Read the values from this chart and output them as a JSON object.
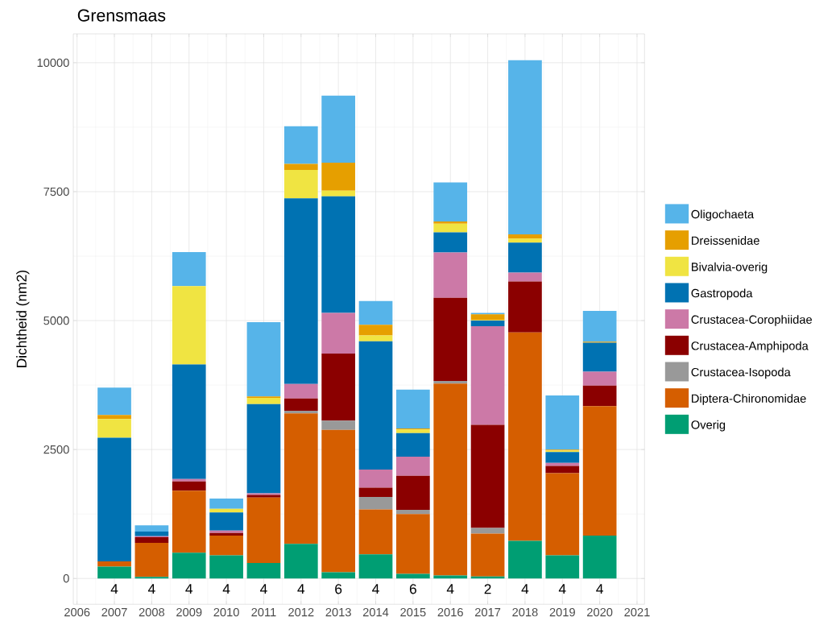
{
  "chart_data": {
    "type": "bar",
    "stacked": true,
    "title": "Grensmaas",
    "ylabel": "Dichtheid (nm2)",
    "x": [
      2007,
      2008,
      2009,
      2010,
      2011,
      2012,
      2013,
      2014,
      2015,
      2016,
      2017,
      2018,
      2019,
      2020
    ],
    "xlim": [
      2005.9,
      2021.2
    ],
    "ylim": [
      -500,
      10560
    ],
    "xticks": [
      2006,
      2007,
      2008,
      2009,
      2010,
      2011,
      2012,
      2013,
      2014,
      2015,
      2016,
      2017,
      2018,
      2019,
      2020,
      2021
    ],
    "yticks": [
      0,
      2500,
      5000,
      7500,
      10000
    ],
    "grid": true,
    "legend": "right",
    "series": [
      {
        "name": "Overig",
        "color": "#009e73",
        "values": [
          230,
          30,
          500,
          450,
          300,
          670,
          120,
          470,
          90,
          60,
          40,
          730,
          450,
          830
        ]
      },
      {
        "name": "Diptera-Chironomidae",
        "color": "#d55e00",
        "values": [
          100,
          660,
          1200,
          380,
          1270,
          2530,
          2760,
          870,
          1160,
          3720,
          830,
          4040,
          1590,
          2510
        ]
      },
      {
        "name": "Crustacea-Isopoda",
        "color": "#999999",
        "values": [
          0,
          0,
          0,
          0,
          0,
          50,
          180,
          240,
          80,
          50,
          110,
          0,
          0,
          0
        ]
      },
      {
        "name": "Crustacea-Amphipoda",
        "color": "#8b0000",
        "values": [
          0,
          110,
          180,
          50,
          50,
          240,
          1300,
          180,
          660,
          1610,
          2000,
          990,
          140,
          400
        ]
      },
      {
        "name": "Crustacea-Corophiidae",
        "color": "#cc79a7",
        "values": [
          0,
          20,
          50,
          50,
          30,
          280,
          790,
          350,
          370,
          880,
          1910,
          170,
          60,
          270
        ]
      },
      {
        "name": "Gastropoda",
        "color": "#0072b2",
        "values": [
          2400,
          90,
          2220,
          350,
          1730,
          3600,
          2260,
          2490,
          460,
          390,
          110,
          580,
          210,
          560
        ]
      },
      {
        "name": "Bivalvia-overig",
        "color": "#f0e442",
        "values": [
          360,
          0,
          1520,
          70,
          120,
          550,
          110,
          110,
          70,
          170,
          10,
          80,
          30,
          0
        ]
      },
      {
        "name": "Dreissenidae",
        "color": "#e69f00",
        "values": [
          80,
          0,
          0,
          0,
          30,
          120,
          540,
          210,
          20,
          40,
          110,
          80,
          20,
          20
        ]
      },
      {
        "name": "Oligochaeta",
        "color": "#56b4e9",
        "values": [
          530,
          120,
          660,
          200,
          1440,
          730,
          1300,
          460,
          750,
          760,
          30,
          3380,
          1050,
          600
        ]
      }
    ],
    "annotations": [
      "4",
      "4",
      "4",
      "4",
      "4",
      "4",
      "6",
      "4",
      "6",
      "4",
      "2",
      "4",
      "4",
      "4"
    ]
  }
}
